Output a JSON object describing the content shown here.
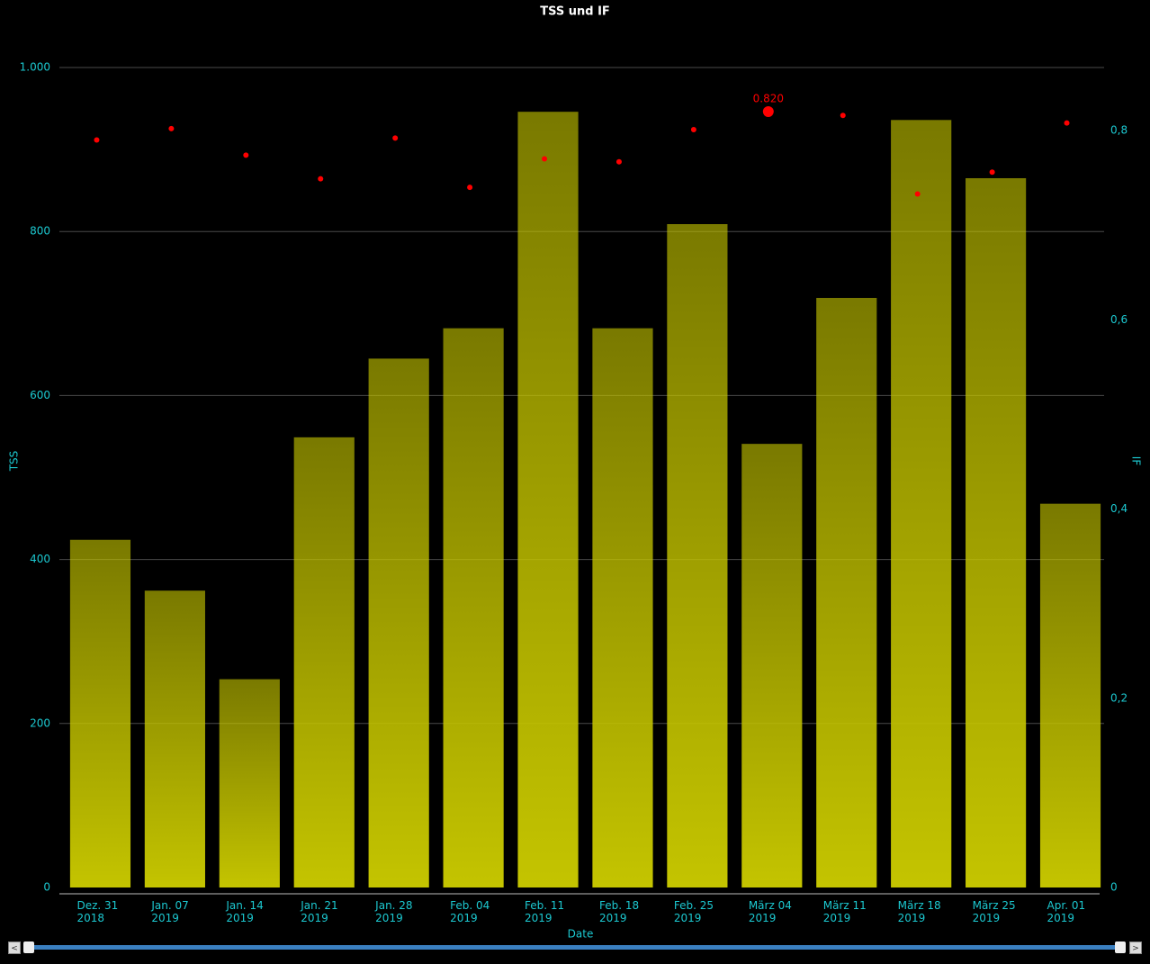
{
  "chart_data": {
    "type": "bar",
    "title": "TSS und IF",
    "x_label": "Date",
    "y_label": "TSS",
    "y2_label": "IF",
    "categories": [
      "Dez. 31\n2018",
      "Jan. 07\n2019",
      "Jan. 14\n2019",
      "Jan. 21\n2019",
      "Jan. 28\n2019",
      "Feb. 04\n2019",
      "Feb. 11\n2019",
      "Feb. 18\n2019",
      "Feb. 25\n2019",
      "März 04\n2019",
      "März 11\n2019",
      "März 18\n2019",
      "März 25\n2019",
      "Apr. 01\n2019"
    ],
    "series": [
      {
        "name": "TSS",
        "type": "bar",
        "color": "#c4c400",
        "values": [
          424,
          362,
          254,
          549,
          645,
          682,
          946,
          682,
          809,
          541,
          719,
          936,
          865,
          468
        ]
      },
      {
        "name": "IF",
        "type": "scatter",
        "axis": "y2",
        "color": "#ff0000",
        "values": [
          0.79,
          0.802,
          0.774,
          0.749,
          0.792,
          0.74,
          0.77,
          0.767,
          0.801,
          0.82,
          0.816,
          0.733,
          0.756,
          0.808
        ],
        "value_labels": [
          null,
          null,
          null,
          null,
          null,
          null,
          null,
          null,
          null,
          "0.820",
          null,
          null,
          null,
          null
        ]
      }
    ],
    "ylim": [
      0,
      1000
    ],
    "yticks": [
      0,
      200,
      400,
      600,
      800,
      {
        "value": 1000,
        "label": "1.000"
      }
    ],
    "y2lim": [
      0,
      0.8666
    ],
    "y2ticks": [
      0,
      {
        "value": 0.2,
        "label": "0,2"
      },
      {
        "value": 0.4,
        "label": "0,4"
      },
      {
        "value": 0.6,
        "label": "0,6"
      },
      {
        "value": 0.8,
        "label": "0,8"
      }
    ],
    "grid": true
  },
  "controls": {
    "scroll_left": "<",
    "scroll_right": ">"
  }
}
